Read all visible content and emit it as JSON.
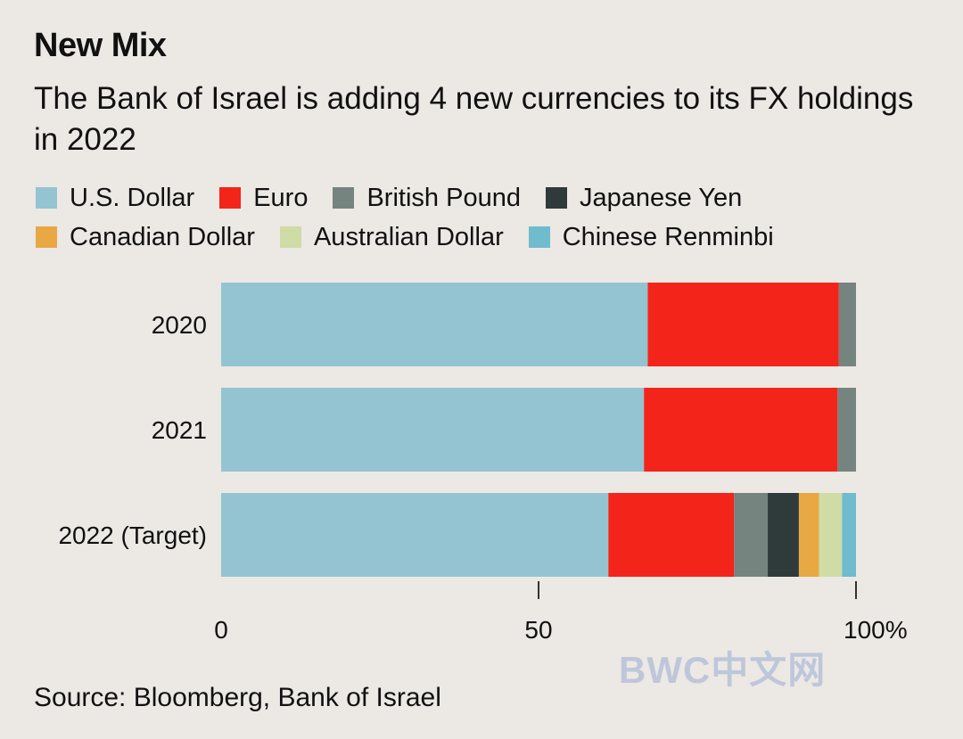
{
  "header": {
    "title": "New Mix",
    "subtitle": "The Bank of Israel is adding 4 new currencies to its FX holdings in 2022"
  },
  "legend": {
    "rows": [
      [
        {
          "label": "U.S. Dollar",
          "color": "#94c4d2"
        },
        {
          "label": "Euro",
          "color": "#f3241a"
        },
        {
          "label": "British Pound",
          "color": "#768480"
        },
        {
          "label": "Japanese Yen",
          "color": "#2f3a3a"
        }
      ],
      [
        {
          "label": "Canadian Dollar",
          "color": "#e8a844"
        },
        {
          "label": "Australian Dollar",
          "color": "#cfdca6"
        },
        {
          "label": "Chinese Renminbi",
          "color": "#6fbcce"
        }
      ]
    ]
  },
  "chart_data": {
    "type": "bar",
    "orientation": "horizontal",
    "stacked": true,
    "title": "New Mix",
    "subtitle": "The Bank of Israel is adding 4 new currencies to its FX holdings in 2022",
    "categories": [
      "2020",
      "2021",
      "2022 (Target)"
    ],
    "series": [
      {
        "name": "U.S. Dollar",
        "color": "#94c4d2",
        "values": [
          67.2,
          66.6,
          61.0
        ]
      },
      {
        "name": "Euro",
        "color": "#f3241a",
        "values": [
          30.1,
          30.5,
          19.8
        ]
      },
      {
        "name": "British Pound",
        "color": "#768480",
        "values": [
          2.7,
          2.9,
          5.3
        ]
      },
      {
        "name": "Japanese Yen",
        "color": "#2f3a3a",
        "values": [
          0,
          0,
          4.9
        ]
      },
      {
        "name": "Canadian Dollar",
        "color": "#e8a844",
        "values": [
          0,
          0,
          3.2
        ]
      },
      {
        "name": "Australian Dollar",
        "color": "#cfdca6",
        "values": [
          0,
          0,
          3.6
        ]
      },
      {
        "name": "Chinese Renminbi",
        "color": "#6fbcce",
        "values": [
          0,
          0,
          2.2
        ]
      }
    ],
    "xlim": [
      0,
      100
    ],
    "xticks": [
      {
        "value": 0,
        "label": "0"
      },
      {
        "value": 50,
        "label": "50"
      },
      {
        "value": 100,
        "label": "100%"
      }
    ],
    "xlabel": "",
    "ylabel": "",
    "grid": false,
    "legend_position": "top"
  },
  "footer": {
    "source": "Source: Bloomberg, Bank of Israel",
    "watermark": "BWC中文网"
  }
}
